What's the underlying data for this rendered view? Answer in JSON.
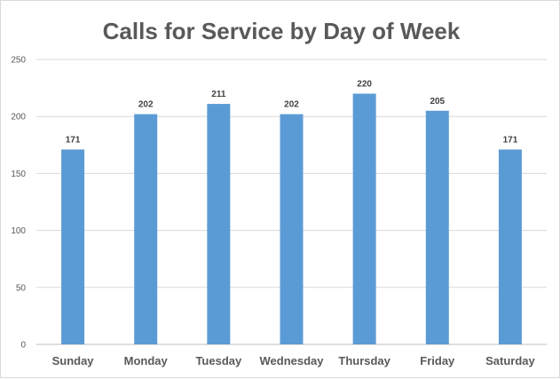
{
  "chart_data": {
    "type": "bar",
    "title": "Calls for Service by Day of Week",
    "categories": [
      "Sunday",
      "Monday",
      "Tuesday",
      "Wednesday",
      "Thursday",
      "Friday",
      "Saturday"
    ],
    "values": [
      171,
      202,
      211,
      202,
      220,
      205,
      171
    ],
    "data_labels": [
      "171",
      "202",
      "211",
      "202",
      "220",
      "205",
      "171"
    ],
    "yticks": [
      "0",
      "50",
      "100",
      "150",
      "200",
      "250"
    ],
    "ylim": [
      0,
      250
    ],
    "grid": true,
    "bar_color": "#5b9bd5"
  }
}
